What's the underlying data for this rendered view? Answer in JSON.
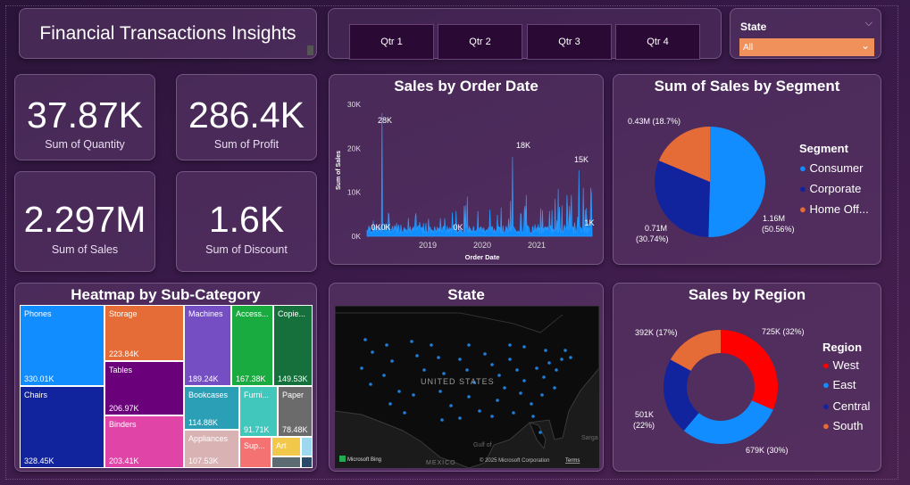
{
  "header": {
    "title": "Financial Transactions Insights"
  },
  "quarters": [
    "Qtr 1",
    "Qtr 2",
    "Qtr 3",
    "Qtr 4"
  ],
  "state_filter": {
    "label": "State",
    "value": "All"
  },
  "kpis": [
    {
      "value": "37.87K",
      "label": "Sum of Quantity"
    },
    {
      "value": "286.4K",
      "label": "Sum of Profit"
    },
    {
      "value": "2.297M",
      "label": "Sum of Sales"
    },
    {
      "value": "1.6K",
      "label": "Sum of Discount"
    }
  ],
  "map": {
    "title": "State",
    "country_label": "UNITED STATES",
    "gulf_label": "Gulf of",
    "mexico_label": "MEXICO",
    "sargasso_label": "Sarga",
    "logo": "Microsoft Bing",
    "copyright": "© 2025 Microsoft Corporation",
    "terms": "Terms"
  },
  "chart_data": [
    {
      "id": "sales_by_order_date",
      "type": "line",
      "title": "Sales by Order Date",
      "xlabel": "Order Date",
      "ylabel": "Sum of Sales",
      "yticks": [
        "0K",
        "10K",
        "20K",
        "30K"
      ],
      "ylim": [
        0,
        30000
      ],
      "xticks": [
        "2019",
        "2020",
        "2021"
      ],
      "x_range": [
        "2018-01",
        "2021-12"
      ],
      "annotations": [
        "28K",
        "0K",
        "0K",
        "0K",
        "18K",
        "15K",
        "1K"
      ]
    },
    {
      "id": "sales_by_segment",
      "type": "pie",
      "title": "Sum of Sales by Segment",
      "legend_title": "Segment",
      "slices": [
        {
          "name": "Consumer",
          "value": 1.16,
          "percent": 50.56,
          "label_value": "1.16M",
          "label_pct": "(50.56%)",
          "color": "#118dff"
        },
        {
          "name": "Corporate",
          "value": 0.71,
          "percent": 30.74,
          "label_value": "0.71M",
          "label_pct": "(30.74%)",
          "color": "#12239e"
        },
        {
          "name": "Home Office",
          "legend_label": "Home Off...",
          "value": 0.43,
          "percent": 18.7,
          "label_value": "0.43M (18.7%)",
          "color": "#e66c37"
        }
      ]
    },
    {
      "id": "sales_by_region",
      "type": "pie",
      "variant": "donut",
      "title": "Sales by Region",
      "legend_title": "Region",
      "slices": [
        {
          "name": "West",
          "value": 725,
          "percent": 32,
          "label": "725K (32%)",
          "color": "#ff0000"
        },
        {
          "name": "East",
          "value": 679,
          "percent": 30,
          "label": "679K (30%)",
          "color": "#118dff"
        },
        {
          "name": "Central",
          "value": 501,
          "percent": 22,
          "label_value": "501K",
          "label_pct": "(22%)",
          "color": "#12239e"
        },
        {
          "name": "South",
          "value": 392,
          "percent": 17,
          "label": "392K (17%)",
          "color": "#e66c37"
        }
      ]
    },
    {
      "id": "heatmap_sub_category",
      "type": "heatmap",
      "variant": "treemap",
      "title": "Heatmap by Sub-Category",
      "cells": [
        {
          "name": "Phones",
          "value": "330.01K",
          "color": "#118dff"
        },
        {
          "name": "Chairs",
          "value": "328.45K",
          "color": "#12239e"
        },
        {
          "name": "Storage",
          "value": "223.84K",
          "color": "#e66c37"
        },
        {
          "name": "Tables",
          "value": "206.97K",
          "color": "#6b007b"
        },
        {
          "name": "Binders",
          "value": "203.41K",
          "color": "#e044a7"
        },
        {
          "name": "Machines",
          "value": "189.24K",
          "color": "#744ec2"
        },
        {
          "name": "Access...",
          "value": "167.38K",
          "color": "#1aab40"
        },
        {
          "name": "Copie...",
          "value": "149.53K",
          "color": "#15703c"
        },
        {
          "name": "Bookcases",
          "value": "114.88K",
          "color": "#2b9fb6"
        },
        {
          "name": "Appliances",
          "value": "107.53K",
          "color": "#d9b2b4"
        },
        {
          "name": "Furni...",
          "value": "91.71K",
          "color": "#41c7bc"
        },
        {
          "name": "Paper",
          "value": "78.48K",
          "color": "#6b6b6b"
        },
        {
          "name": "Sup...",
          "value": "",
          "color": "#f57272"
        },
        {
          "name": "Art",
          "value": "",
          "color": "#f2c84b"
        },
        {
          "name": "",
          "value": "",
          "color": "#5d6b72"
        },
        {
          "name": "",
          "value": "",
          "color": "#9ed8f0"
        },
        {
          "name": "",
          "value": "",
          "color": "#2b4a6a"
        }
      ]
    }
  ]
}
